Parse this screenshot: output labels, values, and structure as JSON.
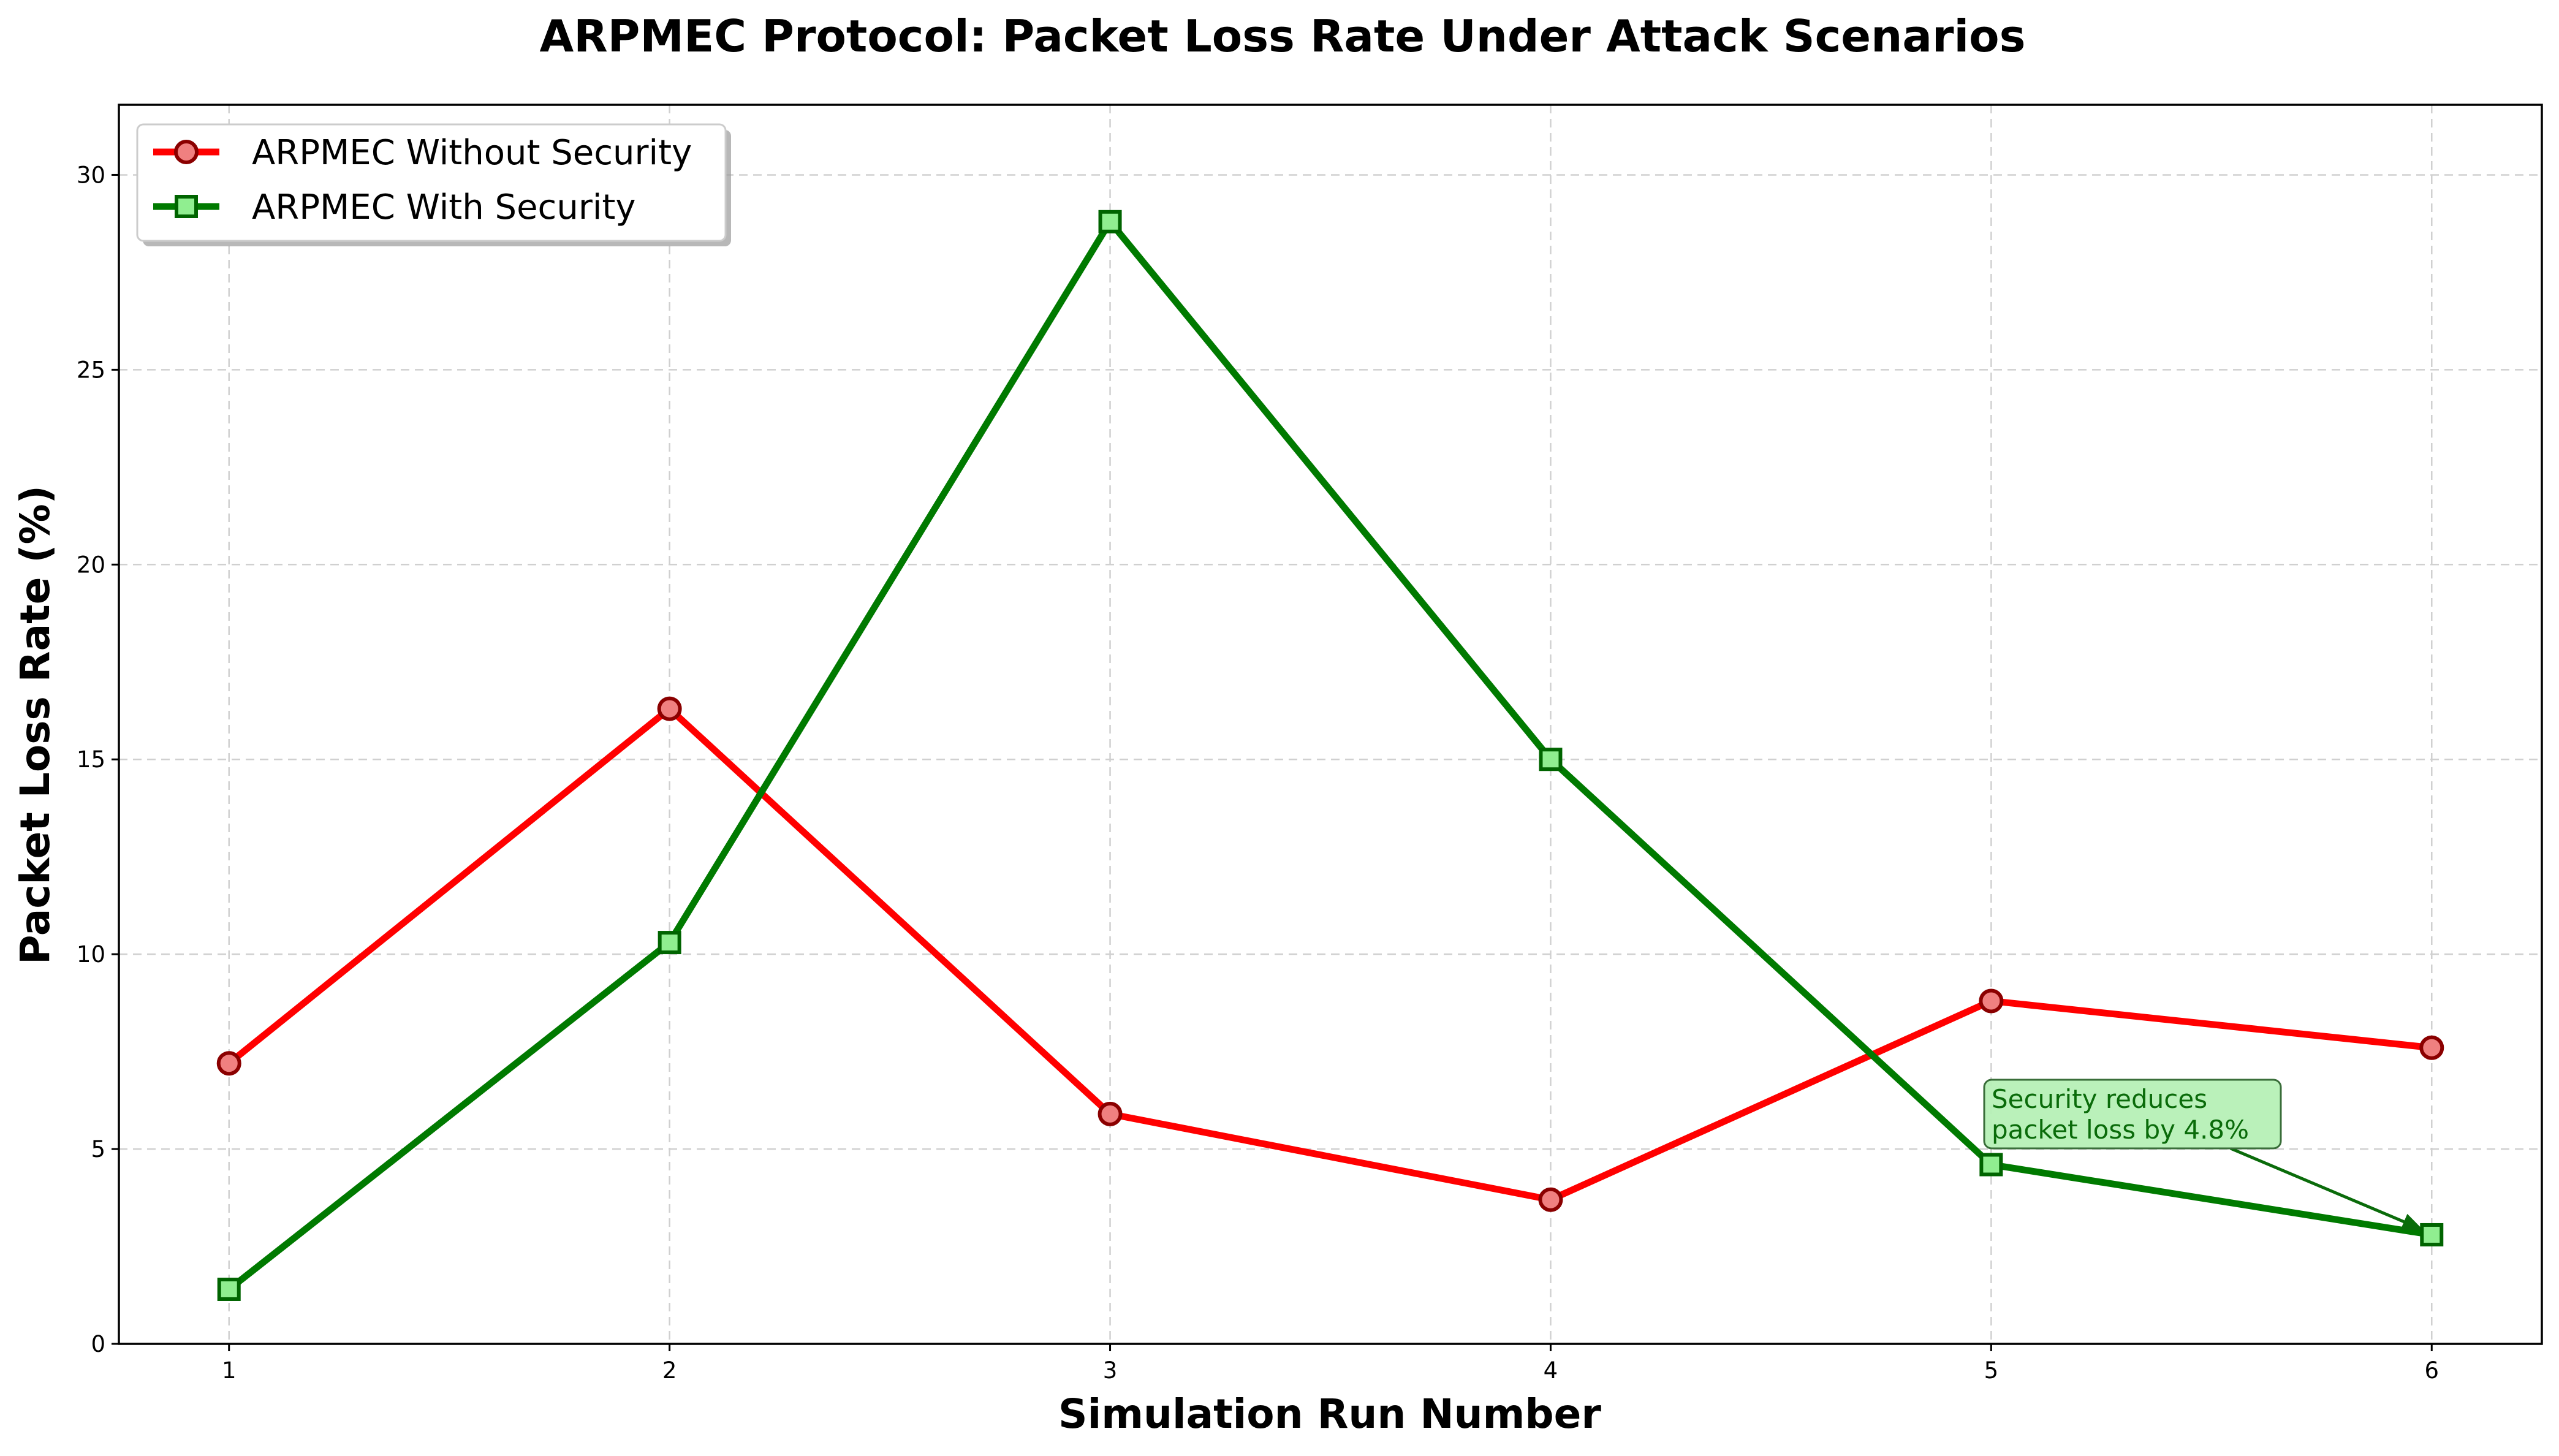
{
  "chart_data": {
    "type": "line",
    "title": "ARPMEC Protocol: Packet Loss Rate Under Attack Scenarios",
    "xlabel": "Simulation Run Number",
    "ylabel": "Packet Loss Rate (%)",
    "x": [
      1,
      2,
      3,
      4,
      5,
      6
    ],
    "x_ticks": [
      "1",
      "2",
      "3",
      "4",
      "5",
      "6"
    ],
    "y_ticks": [
      "0",
      "5",
      "10",
      "15",
      "20",
      "25",
      "30"
    ],
    "xlim": [
      0.75,
      6.25
    ],
    "ylim": [
      0,
      31.8
    ],
    "grid": true,
    "legend_position": "upper-left",
    "series": [
      {
        "name": "ARPMEC Without Security",
        "values": [
          7.2,
          16.3,
          5.9,
          3.7,
          8.8,
          7.6
        ],
        "color": "#ff0000",
        "marker": "circle",
        "marker_fill": "#f08080",
        "marker_edge": "#8b0000"
      },
      {
        "name": "ARPMEC With Security",
        "values": [
          1.4,
          10.3,
          28.8,
          15.0,
          4.6,
          2.8
        ],
        "color": "#007a00",
        "marker": "square",
        "marker_fill": "#90ee90",
        "marker_edge": "#006400"
      }
    ],
    "annotation": {
      "text_lines": [
        "Security reduces",
        "packet loss by 4.8%"
      ],
      "target_x": 6,
      "target_y": 2.8,
      "box_fill": "#b6f0b6",
      "text_color": "#0a6b0a"
    }
  }
}
